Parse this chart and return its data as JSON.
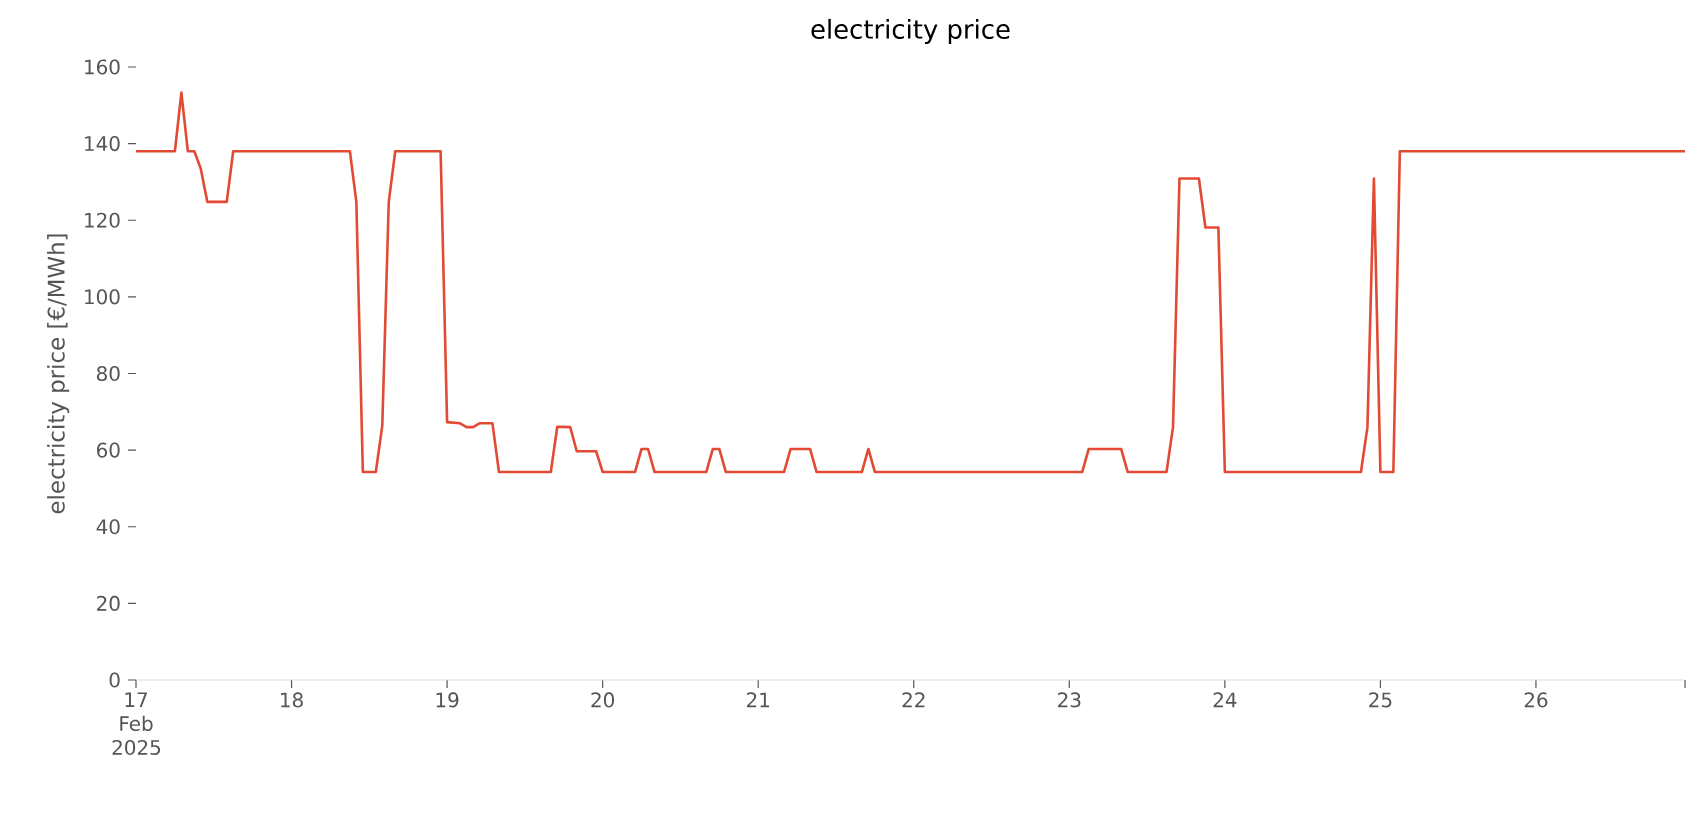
{
  "chart_data": {
    "type": "line",
    "title": "electricity price",
    "ylabel": "electricity price [€/MWh]",
    "color": "#e24a33",
    "x": [
      "2025-02-17T00:00",
      "2025-02-17T06:00",
      "2025-02-17T07:00",
      "2025-02-17T08:00",
      "2025-02-17T09:00",
      "2025-02-17T10:00",
      "2025-02-17T11:00",
      "2025-02-17T14:00",
      "2025-02-17T15:00",
      "2025-02-18T09:00",
      "2025-02-18T10:00",
      "2025-02-18T11:00",
      "2025-02-18T13:00",
      "2025-02-18T14:00",
      "2025-02-18T15:00",
      "2025-02-18T16:00",
      "2025-02-18T23:00",
      "2025-02-19T00:00",
      "2025-02-19T02:00",
      "2025-02-19T03:00",
      "2025-02-19T04:00",
      "2025-02-19T05:00",
      "2025-02-19T07:00",
      "2025-02-19T08:00",
      "2025-02-19T16:00",
      "2025-02-19T17:00",
      "2025-02-19T19:00",
      "2025-02-19T20:00",
      "2025-02-19T23:00",
      "2025-02-20T00:00",
      "2025-02-20T05:00",
      "2025-02-20T06:00",
      "2025-02-20T07:00",
      "2025-02-20T08:00",
      "2025-02-20T16:00",
      "2025-02-20T17:00",
      "2025-02-20T18:00",
      "2025-02-20T19:00",
      "2025-02-21T04:00",
      "2025-02-21T05:00",
      "2025-02-21T08:00",
      "2025-02-21T09:00",
      "2025-02-21T16:00",
      "2025-02-21T17:00",
      "2025-02-21T18:00",
      "2025-02-23T02:00",
      "2025-02-23T03:00",
      "2025-02-23T08:00",
      "2025-02-23T09:00",
      "2025-02-23T15:00",
      "2025-02-23T16:00",
      "2025-02-23T17:00",
      "2025-02-23T20:00",
      "2025-02-23T21:00",
      "2025-02-23T23:00",
      "2025-02-24T00:00",
      "2025-02-24T21:00",
      "2025-02-24T22:00",
      "2025-02-24T23:00",
      "2025-02-25T00:00",
      "2025-02-25T02:00",
      "2025-02-25T03:00",
      "2025-02-26T23:00"
    ],
    "values": [
      138,
      138,
      153.3,
      138,
      138,
      133.4,
      124.8,
      124.8,
      138,
      138,
      124.8,
      54.3,
      54.3,
      66.4,
      124.8,
      138,
      138,
      67.3,
      67,
      66,
      66,
      67,
      67,
      54.3,
      54.3,
      66.1,
      66,
      59.7,
      59.7,
      54.3,
      54.3,
      60.3,
      60.3,
      54.3,
      54.3,
      60.3,
      60.3,
      54.3,
      54.3,
      60.3,
      60.3,
      54.3,
      54.3,
      60.3,
      54.3,
      54.3,
      60.3,
      60.3,
      54.3,
      54.3,
      66,
      130.9,
      130.9,
      118.1,
      118.1,
      54.3,
      54.3,
      66,
      130.9,
      54.3,
      54.3,
      138,
      138
    ],
    "xlim": [
      "2025-02-17T00:00",
      "2025-02-26T23:00"
    ],
    "ylim": [
      0,
      160
    ],
    "xticks": [
      {
        "value": "2025-02-17",
        "label": "17 Feb 2025"
      },
      {
        "value": "2025-02-18",
        "label": "18"
      },
      {
        "value": "2025-02-19",
        "label": "19"
      },
      {
        "value": "2025-02-20",
        "label": "20"
      },
      {
        "value": "2025-02-21",
        "label": "21"
      },
      {
        "value": "2025-02-22",
        "label": "22"
      },
      {
        "value": "2025-02-23",
        "label": "23"
      },
      {
        "value": "2025-02-24",
        "label": "24"
      },
      {
        "value": "2025-02-25",
        "label": "25"
      },
      {
        "value": "2025-02-26",
        "label": "26"
      },
      {
        "value": "2025-02-26T23:00",
        "label": null
      }
    ],
    "yticks": [
      0,
      20,
      40,
      60,
      80,
      100,
      120,
      140,
      160
    ]
  }
}
